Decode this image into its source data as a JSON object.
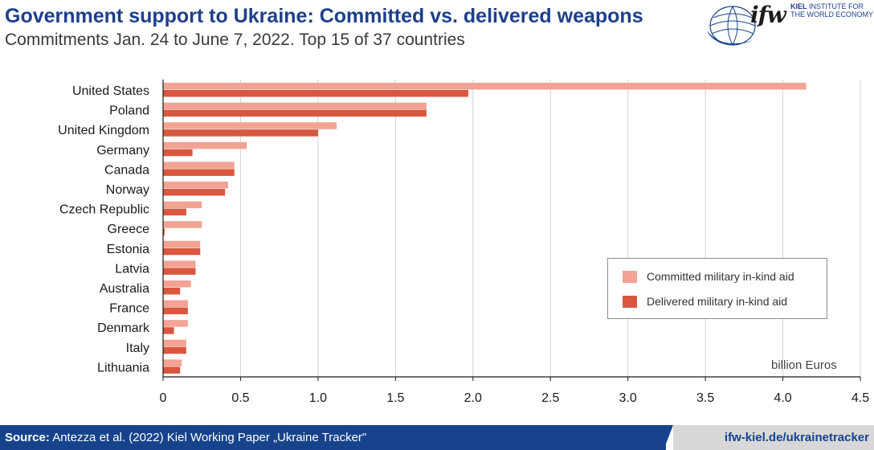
{
  "header": {
    "title": "Government support to Ukraine: Committed vs. delivered weapons",
    "subtitle": "Commitments Jan. 24 to June 7, 2022. Top 15 of 37 countries"
  },
  "logo": {
    "mark": "ifw",
    "line1_bold": "KIEL",
    "line1": " INSTITUTE FOR",
    "line2": "THE WORLD ECONOMY"
  },
  "footer": {
    "source_label": "Source:",
    "source_text": " Antezza et al. (2022) Kiel Working Paper „Ukraine Tracker\"",
    "link": "ifw-kiel.de/ukrainetracker"
  },
  "colors": {
    "committed": "#f2a394",
    "delivered": "#d9573f",
    "title": "#1e3f8a",
    "footer_bg": "#16438c"
  },
  "chart_data": {
    "type": "bar",
    "orientation": "horizontal",
    "categories": [
      "United States",
      "Poland",
      "United Kingdom",
      "Germany",
      "Canada",
      "Norway",
      "Czech Republic",
      "Greece",
      "Estonia",
      "Latvia",
      "Australia",
      "France",
      "Denmark",
      "Italy",
      "Lithuania"
    ],
    "series": [
      {
        "name": "Committed military in-kind aid",
        "values": [
          4.15,
          1.7,
          1.12,
          0.54,
          0.46,
          0.42,
          0.25,
          0.25,
          0.24,
          0.21,
          0.18,
          0.16,
          0.16,
          0.15,
          0.12
        ]
      },
      {
        "name": "Delivered military in-kind aid",
        "values": [
          1.97,
          1.7,
          1.0,
          0.19,
          0.46,
          0.4,
          0.15,
          0.01,
          0.24,
          0.21,
          0.11,
          0.16,
          0.07,
          0.15,
          0.11
        ]
      }
    ],
    "unit_label": "billion Euros",
    "xlim": [
      0,
      4.5
    ],
    "xticks": [
      "0",
      "0.5",
      "1.0",
      "1.5",
      "2.0",
      "2.5",
      "3.0",
      "3.5",
      "4.0",
      "4.5"
    ],
    "grid": "vertical",
    "legend_position": "right-lower"
  }
}
